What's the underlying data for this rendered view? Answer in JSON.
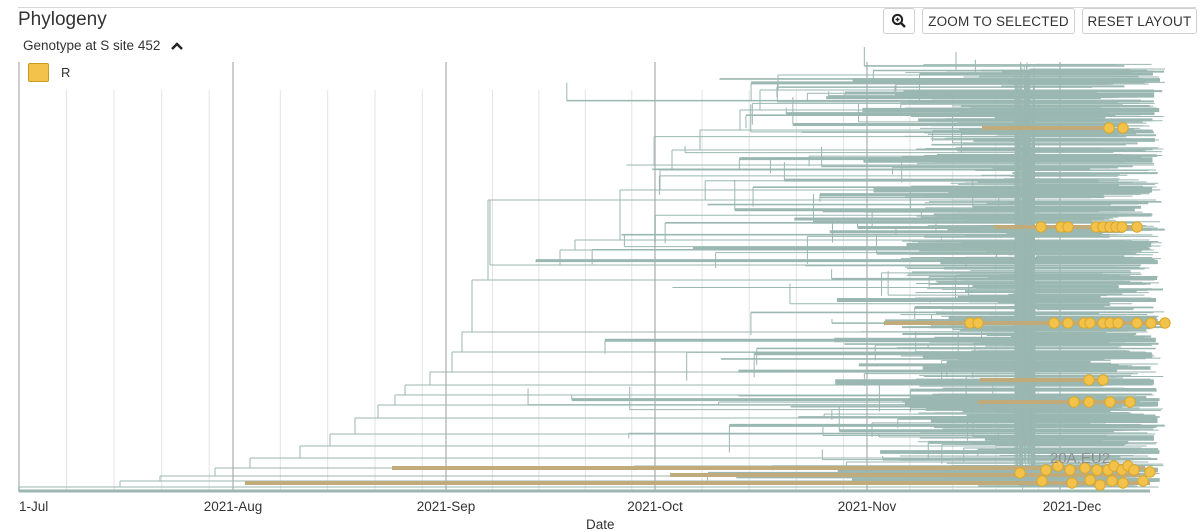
{
  "panel": {
    "title": "Phylogeny",
    "color_by": "Genotype at S site 452",
    "clade_label": "20A.EU2"
  },
  "legend": {
    "items": [
      {
        "label": "R",
        "color": "#f3c24b"
      }
    ]
  },
  "toolbar": {
    "zoom_selected_label": "ZOOM TO SELECTED",
    "reset_layout_label": "RESET LAYOUT"
  },
  "axis": {
    "xlabel": "Date",
    "ticks": [
      "1-Jul",
      "2021-Aug",
      "2021-Sep",
      "2021-Oct",
      "2021-Nov",
      "2021-Dec"
    ]
  },
  "colors": {
    "branch": "#9ab7b1",
    "highlight_branch": "#c2ab7a",
    "tip": "#f3c24b",
    "tip_stroke": "#d9a72a",
    "grid": "#e3e3e3",
    "grid_major": "#cdcdcd"
  },
  "icons": {
    "zoom": "magnifier-icon",
    "collapse": "chevron-up-icon"
  }
}
